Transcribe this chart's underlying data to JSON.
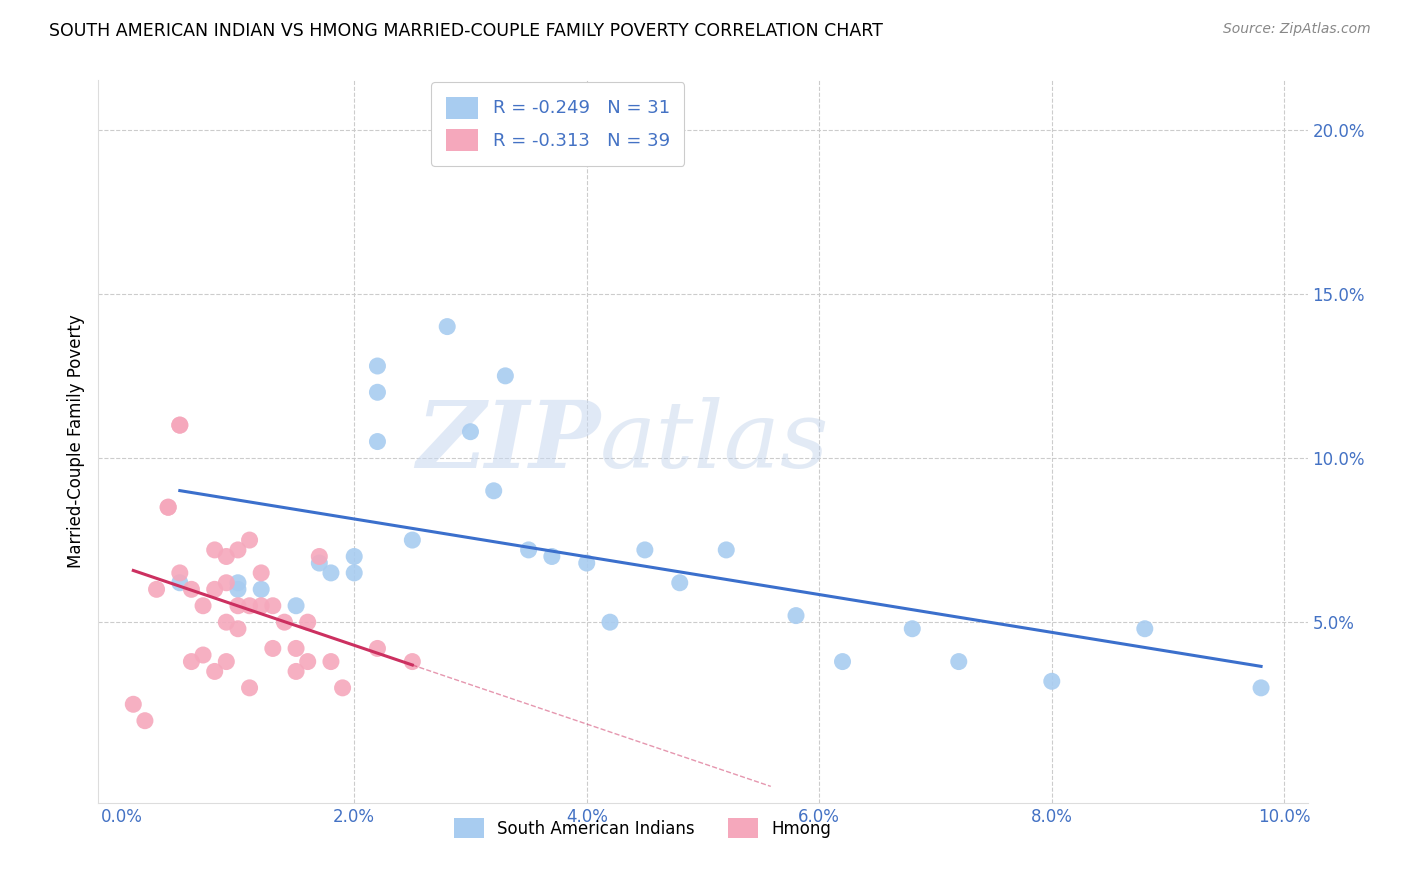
{
  "title": "SOUTH AMERICAN INDIAN VS HMONG MARRIED-COUPLE FAMILY POVERTY CORRELATION CHART",
  "source": "Source: ZipAtlas.com",
  "ylabel": "Married-Couple Family Poverty",
  "legend_label1": "South American Indians",
  "legend_label2": "Hmong",
  "r1": "-0.249",
  "n1": "31",
  "r2": "-0.313",
  "n2": "39",
  "xlim": [
    -0.002,
    0.102
  ],
  "ylim": [
    -0.005,
    0.215
  ],
  "xticks": [
    0.0,
    0.02,
    0.04,
    0.06,
    0.08,
    0.1
  ],
  "yticks": [
    0.0,
    0.05,
    0.1,
    0.15,
    0.2
  ],
  "xtick_labels": [
    "0.0%",
    "2.0%",
    "4.0%",
    "6.0%",
    "8.0%",
    "10.0%"
  ],
  "ytick_labels": [
    "",
    "5.0%",
    "10.0%",
    "15.0%",
    "20.0%"
  ],
  "color_blue": "#A8CCF0",
  "color_pink": "#F5A8BC",
  "line_color_blue": "#3B6FCC",
  "line_color_pink": "#CC3060",
  "tick_color": "#4472C4",
  "background_color": "#FFFFFF",
  "grid_color": "#CCCCCC",
  "watermark_zip": "ZIP",
  "watermark_atlas": "atlas",
  "blue_points_x": [
    0.005,
    0.01,
    0.01,
    0.012,
    0.015,
    0.017,
    0.018,
    0.02,
    0.02,
    0.022,
    0.022,
    0.022,
    0.025,
    0.028,
    0.03,
    0.032,
    0.033,
    0.035,
    0.037,
    0.04,
    0.042,
    0.045,
    0.048,
    0.052,
    0.058,
    0.062,
    0.068,
    0.072,
    0.08,
    0.088,
    0.098
  ],
  "blue_points_y": [
    0.062,
    0.06,
    0.062,
    0.06,
    0.055,
    0.068,
    0.065,
    0.065,
    0.07,
    0.128,
    0.12,
    0.105,
    0.075,
    0.14,
    0.108,
    0.09,
    0.125,
    0.072,
    0.07,
    0.068,
    0.05,
    0.072,
    0.062,
    0.072,
    0.052,
    0.038,
    0.048,
    0.038,
    0.032,
    0.048,
    0.03
  ],
  "pink_points_x": [
    0.001,
    0.002,
    0.003,
    0.004,
    0.004,
    0.005,
    0.005,
    0.005,
    0.006,
    0.006,
    0.007,
    0.007,
    0.008,
    0.008,
    0.008,
    0.009,
    0.009,
    0.009,
    0.009,
    0.01,
    0.01,
    0.01,
    0.011,
    0.011,
    0.011,
    0.012,
    0.012,
    0.013,
    0.013,
    0.014,
    0.015,
    0.015,
    0.016,
    0.016,
    0.017,
    0.018,
    0.019,
    0.022,
    0.025
  ],
  "pink_points_y": [
    0.025,
    0.02,
    0.06,
    0.085,
    0.085,
    0.11,
    0.11,
    0.065,
    0.06,
    0.038,
    0.055,
    0.04,
    0.072,
    0.06,
    0.035,
    0.062,
    0.05,
    0.038,
    0.07,
    0.072,
    0.055,
    0.048,
    0.075,
    0.055,
    0.03,
    0.065,
    0.055,
    0.055,
    0.042,
    0.05,
    0.042,
    0.035,
    0.05,
    0.038,
    0.07,
    0.038,
    0.03,
    0.042,
    0.038
  ]
}
